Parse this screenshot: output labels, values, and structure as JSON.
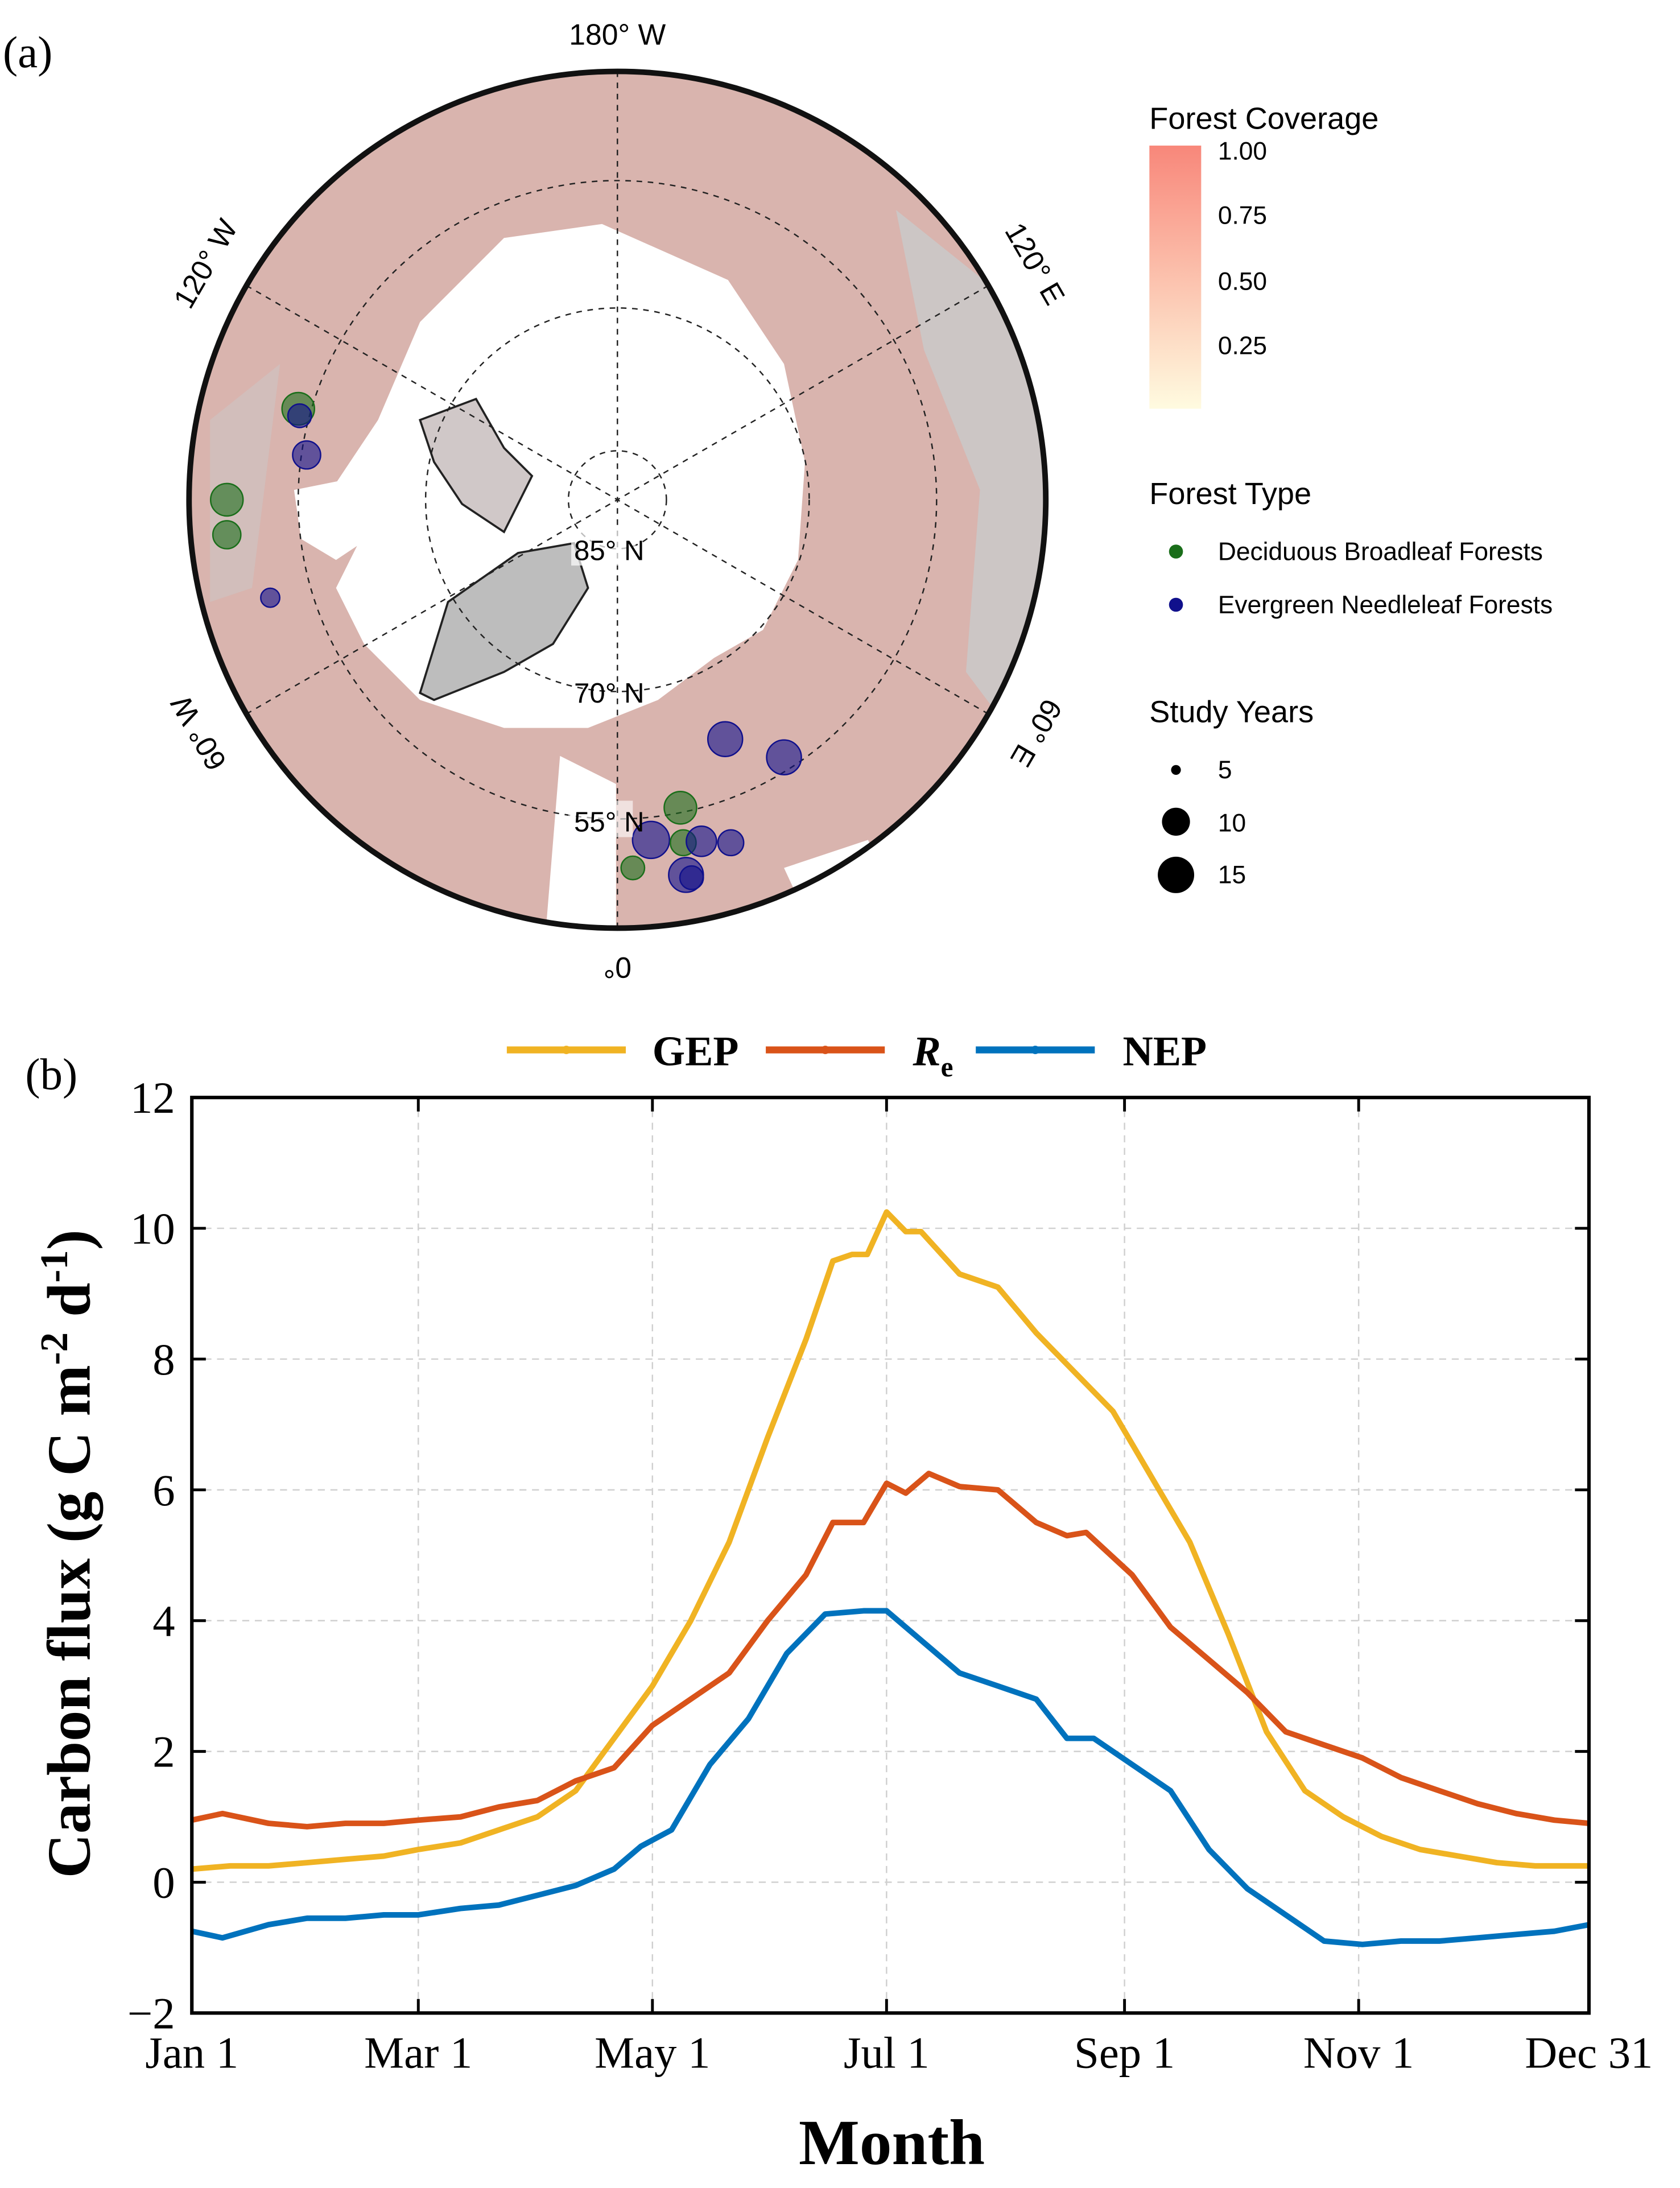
{
  "panel_a": {
    "label": "(a)",
    "lon_labels": {
      "top": "180° W",
      "bottom": "0°",
      "upper_left": "120° W",
      "upper_right": "120° E",
      "lower_left": "60° W",
      "lower_right": "60° E"
    },
    "lat_labels": [
      "85° N",
      "70° N",
      "55° N"
    ],
    "legend_coverage": {
      "title": "Forest Coverage",
      "ticks": [
        "1.00",
        "0.75",
        "0.50",
        "0.25"
      ],
      "color_high": "#f8877a",
      "color_low": "#fffbe0"
    },
    "legend_type": {
      "title": "Forest Type",
      "items": [
        {
          "label": "Deciduous Broadleaf Forests",
          "color": "#1a6e1a"
        },
        {
          "label": "Evergreen Needleleaf Forests",
          "color": "#10108c"
        }
      ]
    },
    "legend_years": {
      "title": "Study Years",
      "items": [
        {
          "label": "5",
          "value": 5
        },
        {
          "label": "10",
          "value": 10
        },
        {
          "label": "15",
          "value": 15
        }
      ]
    },
    "sites": [
      {
        "type": "DBF",
        "years": 12
      },
      {
        "type": "ENF",
        "years": 8
      },
      {
        "type": "ENF",
        "years": 10
      },
      {
        "type": "DBF",
        "years": 12
      },
      {
        "type": "DBF",
        "years": 10
      },
      {
        "type": "ENF",
        "years": 6
      },
      {
        "type": "ENF",
        "years": 13
      },
      {
        "type": "ENF",
        "years": 13
      },
      {
        "type": "DBF",
        "years": 12
      },
      {
        "type": "ENF",
        "years": 14
      },
      {
        "type": "DBF",
        "years": 9
      },
      {
        "type": "ENF",
        "years": 11
      },
      {
        "type": "ENF",
        "years": 9
      },
      {
        "type": "DBF",
        "years": 8
      },
      {
        "type": "ENF",
        "years": 13
      },
      {
        "type": "ENF",
        "years": 8
      }
    ]
  },
  "chart_data": {
    "type": "line",
    "panel_label": "(b)",
    "xlabel": "Month",
    "ylabel_parts": [
      "Carbon flux (g C m",
      "-2",
      " d",
      "-1",
      ")"
    ],
    "ylim": [
      -2,
      12
    ],
    "xlim": [
      0,
      364
    ],
    "yticks": [
      -2,
      0,
      2,
      4,
      6,
      8,
      10,
      12
    ],
    "ytick_labels": [
      "−2",
      "0",
      "2",
      "4",
      "6",
      "8",
      "10",
      "12"
    ],
    "xticks": [
      0,
      59,
      120,
      181,
      243,
      304,
      364
    ],
    "xtick_labels": [
      "Jan 1",
      "Mar 1",
      "May 1",
      "Jul 1",
      "Sep 1",
      "Nov 1",
      "Dec 31"
    ],
    "grid": true,
    "legend_placement": "top",
    "series": [
      {
        "name": "GEP",
        "legend_main": "GEP",
        "legend_sub": "",
        "color": "#f0b323",
        "x": [
          0,
          10,
          20,
          30,
          40,
          50,
          59,
          70,
          80,
          90,
          100,
          110,
          120,
          130,
          140,
          150,
          160,
          167,
          172,
          176,
          181,
          186,
          190,
          200,
          210,
          220,
          230,
          240,
          250,
          260,
          270,
          280,
          290,
          300,
          310,
          320,
          330,
          340,
          350,
          364
        ],
        "y": [
          0.2,
          0.25,
          0.25,
          0.3,
          0.35,
          0.4,
          0.5,
          0.6,
          0.8,
          1.0,
          1.4,
          2.2,
          3.0,
          4.0,
          5.2,
          6.8,
          8.3,
          9.5,
          9.6,
          9.6,
          10.25,
          9.95,
          9.95,
          9.3,
          9.1,
          8.4,
          7.8,
          7.2,
          6.2,
          5.2,
          3.8,
          2.3,
          1.4,
          1.0,
          0.7,
          0.5,
          0.4,
          0.3,
          0.25,
          0.25
        ]
      },
      {
        "name": "Re",
        "legend_main": "R",
        "legend_sub": "e",
        "color": "#d95319",
        "x": [
          0,
          8,
          20,
          30,
          40,
          50,
          59,
          70,
          80,
          90,
          100,
          110,
          120,
          130,
          140,
          150,
          160,
          167,
          175,
          181,
          186,
          192,
          200,
          210,
          220,
          228,
          233,
          245,
          255,
          265,
          275,
          285,
          295,
          305,
          315,
          325,
          335,
          345,
          355,
          364
        ],
        "y": [
          0.95,
          1.05,
          0.9,
          0.85,
          0.9,
          0.9,
          0.95,
          1.0,
          1.15,
          1.25,
          1.55,
          1.75,
          2.4,
          2.8,
          3.2,
          4.0,
          4.7,
          5.5,
          5.5,
          6.1,
          5.95,
          6.25,
          6.05,
          6.0,
          5.5,
          5.3,
          5.35,
          4.7,
          3.9,
          3.4,
          2.9,
          2.3,
          2.1,
          1.9,
          1.6,
          1.4,
          1.2,
          1.05,
          0.95,
          0.9
        ]
      },
      {
        "name": "NEP",
        "legend_main": "NEP",
        "legend_sub": "",
        "color": "#0072bd",
        "x": [
          0,
          8,
          20,
          30,
          40,
          50,
          59,
          70,
          80,
          90,
          100,
          110,
          117,
          125,
          135,
          145,
          155,
          165,
          175,
          181,
          190,
          200,
          210,
          220,
          228,
          235,
          245,
          255,
          265,
          275,
          285,
          295,
          305,
          315,
          325,
          335,
          345,
          355,
          364
        ],
        "y": [
          -0.75,
          -0.85,
          -0.65,
          -0.55,
          -0.55,
          -0.5,
          -0.5,
          -0.4,
          -0.35,
          -0.2,
          -0.05,
          0.2,
          0.55,
          0.8,
          1.8,
          2.5,
          3.5,
          4.1,
          4.15,
          4.15,
          3.7,
          3.2,
          3.0,
          2.8,
          2.2,
          2.2,
          1.8,
          1.4,
          0.5,
          -0.1,
          -0.5,
          -0.9,
          -0.95,
          -0.9,
          -0.9,
          -0.85,
          -0.8,
          -0.75,
          -0.65
        ]
      }
    ]
  }
}
